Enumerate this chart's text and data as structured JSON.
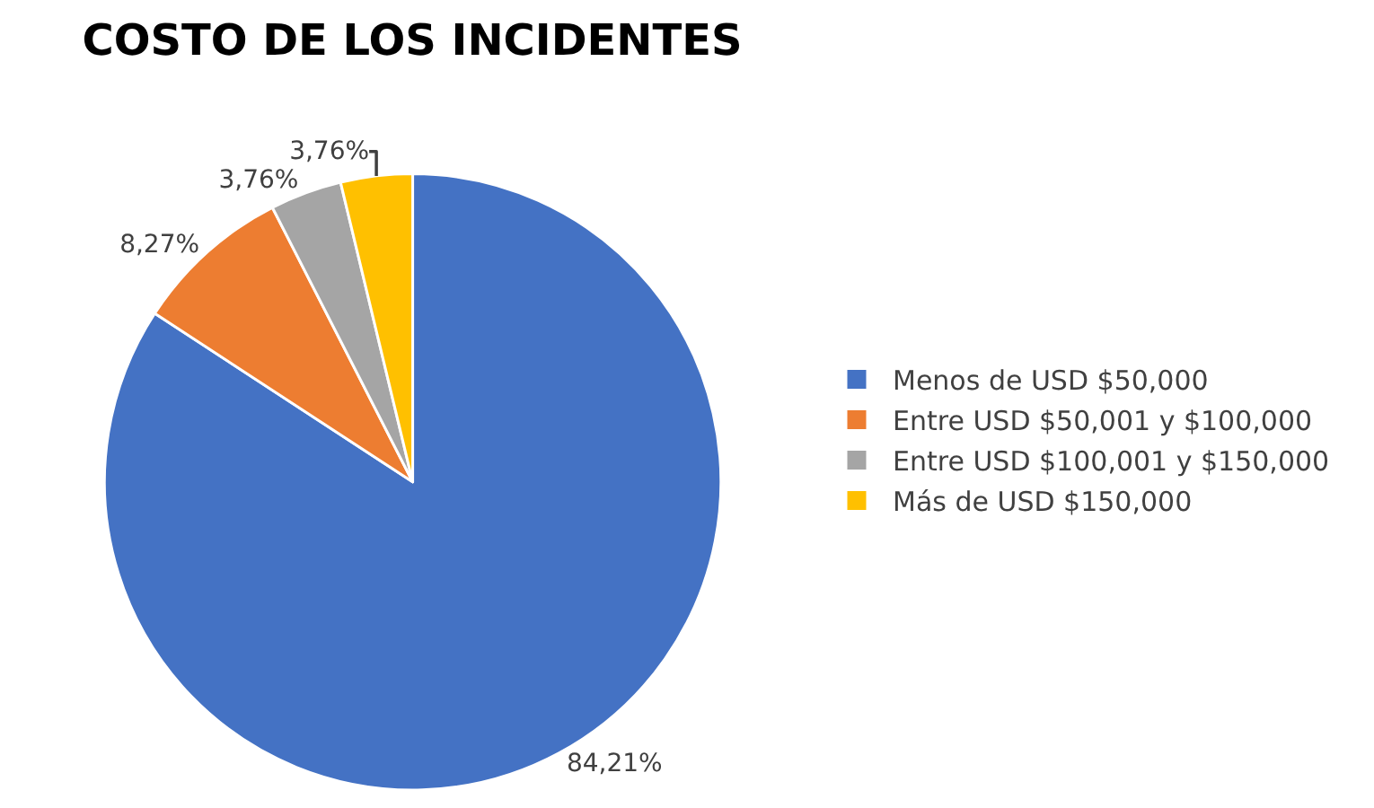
{
  "chart_data": {
    "type": "pie",
    "title": "COSTO DE LOS INCIDENTES",
    "categories": [
      "Menos de USD $50,000",
      "Entre USD $50,001 y $100,000",
      "Entre USD $100,001 y $150,000",
      "Más de USD $150,000"
    ],
    "values": [
      84.21,
      8.27,
      3.76,
      3.76
    ],
    "value_labels": [
      "84,21%",
      "8,27%",
      "3,76%",
      "3,76%"
    ],
    "colors": [
      "#4472c4",
      "#ed7d31",
      "#a5a5a5",
      "#ffc000"
    ],
    "legend": "right"
  }
}
